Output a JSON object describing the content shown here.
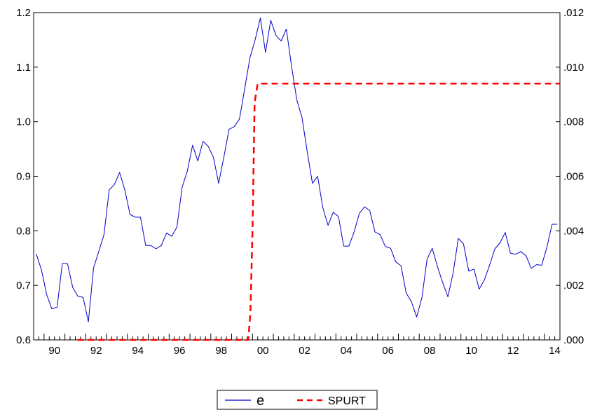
{
  "chart_data": {
    "type": "line",
    "title": "",
    "xlabel": "",
    "ylabel": "",
    "x_ticks": [
      "90",
      "92",
      "94",
      "96",
      "98",
      "00",
      "02",
      "04",
      "06",
      "08",
      "10",
      "12",
      "14"
    ],
    "x_range": [
      1989.5,
      2014.75
    ],
    "y_left": {
      "range": [
        0.6,
        1.2
      ],
      "ticks": [
        "0.6",
        "0.7",
        "0.8",
        "0.9",
        "1.0",
        "1.1",
        "1.2"
      ]
    },
    "y_right": {
      "range": [
        0.0,
        0.012
      ],
      "ticks": [
        ".000",
        ".002",
        ".004",
        ".006",
        ".008",
        ".010",
        ".012"
      ]
    },
    "grid": false,
    "legend": {
      "position": "bottom-center"
    },
    "series": [
      {
        "name": "e",
        "axis": "left",
        "color": "#0000cc",
        "style": "solid",
        "x": [
          1989.625,
          1989.875,
          1990.125,
          1990.375,
          1990.625,
          1990.875,
          1991.125,
          1991.375,
          1991.625,
          1991.875,
          1992.125,
          1992.375,
          1992.625,
          1992.875,
          1993.125,
          1993.375,
          1993.625,
          1993.875,
          1994.125,
          1994.375,
          1994.625,
          1994.875,
          1995.125,
          1995.375,
          1995.625,
          1995.875,
          1996.125,
          1996.375,
          1996.625,
          1996.875,
          1997.125,
          1997.375,
          1997.625,
          1997.875,
          1998.125,
          1998.375,
          1998.625,
          1998.875,
          1999.125,
          1999.375,
          1999.625,
          1999.875,
          2000.125,
          2000.375,
          2000.625,
          2000.875,
          2001.125,
          2001.375,
          2001.625,
          2001.875,
          2002.125,
          2002.375,
          2002.625,
          2002.875,
          2003.125,
          2003.375,
          2003.625,
          2003.875,
          2004.125,
          2004.375,
          2004.625,
          2004.875,
          2005.125,
          2005.375,
          2005.625,
          2005.875,
          2006.125,
          2006.375,
          2006.625,
          2006.875,
          2007.125,
          2007.375,
          2007.625,
          2007.875,
          2008.125,
          2008.375,
          2008.625,
          2008.875,
          2009.125,
          2009.375,
          2009.625,
          2009.875,
          2010.125,
          2010.375,
          2010.625,
          2010.875,
          2011.125,
          2011.375,
          2011.625,
          2011.875,
          2012.125,
          2012.375,
          2012.625,
          2012.875,
          2013.125,
          2013.375,
          2013.625,
          2013.875,
          2014.125,
          2014.375,
          2014.625
        ],
        "values": [
          0.758,
          0.728,
          0.683,
          0.657,
          0.66,
          0.74,
          0.74,
          0.696,
          0.68,
          0.678,
          0.633,
          0.732,
          0.762,
          0.793,
          0.875,
          0.885,
          0.907,
          0.875,
          0.83,
          0.825,
          0.825,
          0.773,
          0.773,
          0.767,
          0.773,
          0.796,
          0.79,
          0.807,
          0.88,
          0.91,
          0.957,
          0.928,
          0.964,
          0.955,
          0.935,
          0.887,
          0.935,
          0.986,
          0.991,
          1.005,
          1.06,
          1.117,
          1.15,
          1.19,
          1.127,
          1.186,
          1.158,
          1.148,
          1.17,
          1.101,
          1.04,
          1.008,
          0.945,
          0.887,
          0.9,
          0.842,
          0.81,
          0.834,
          0.826,
          0.772,
          0.772,
          0.798,
          0.832,
          0.844,
          0.837,
          0.798,
          0.793,
          0.771,
          0.768,
          0.743,
          0.736,
          0.686,
          0.67,
          0.642,
          0.677,
          0.748,
          0.768,
          0.734,
          0.705,
          0.679,
          0.723,
          0.786,
          0.776,
          0.726,
          0.73,
          0.693,
          0.71,
          0.737,
          0.767,
          0.778,
          0.797,
          0.759,
          0.757,
          0.762,
          0.754,
          0.731,
          0.738,
          0.737,
          0.77,
          0.812,
          0.812
        ]
      },
      {
        "name": "SPURT",
        "axis": "right",
        "color": "#ff0000",
        "style": "dashed",
        "x": [
          1991.6,
          1999.8,
          1999.9,
          2000.0,
          2000.1,
          2000.25,
          2014.75
        ],
        "values": [
          0.0,
          0.0,
          0.001,
          0.004,
          0.0087,
          0.0094,
          0.0094
        ]
      }
    ]
  }
}
